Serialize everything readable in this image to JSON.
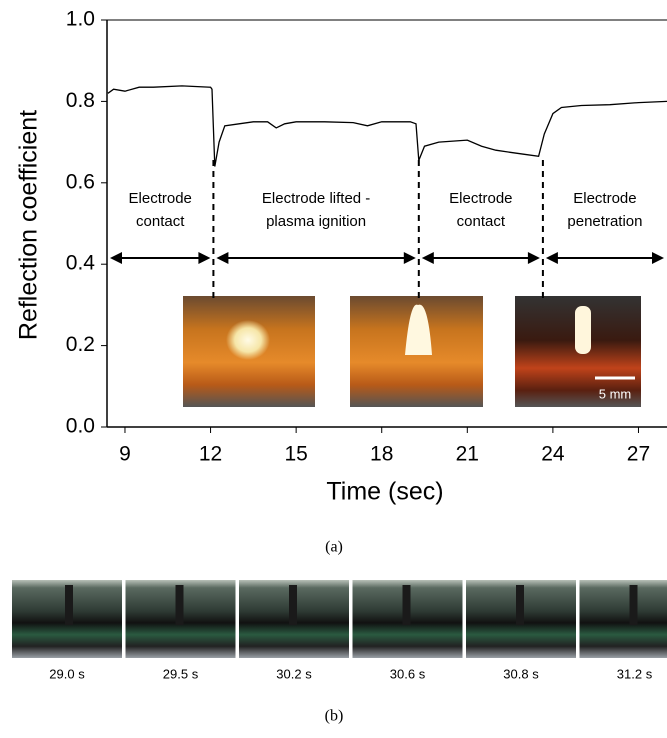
{
  "chart_data": {
    "type": "line",
    "xlabel": "Time (sec)",
    "ylabel": "Reflection coefficient",
    "x": [
      8.4,
      8.6,
      9,
      9.5,
      10,
      11,
      12,
      12.05,
      12.15,
      12.3,
      12.5,
      13,
      13.5,
      14,
      14.3,
      14.6,
      15,
      16,
      17,
      17.5,
      18,
      19,
      19.2,
      19.3,
      19.5,
      20,
      21,
      21.5,
      22,
      22.5,
      23,
      23.5,
      23.7,
      24,
      24.3,
      25,
      26,
      27,
      28
    ],
    "series": [
      {
        "color": "#000000",
        "values": [
          0.82,
          0.83,
          0.825,
          0.835,
          0.835,
          0.838,
          0.835,
          0.83,
          0.64,
          0.7,
          0.74,
          0.745,
          0.75,
          0.75,
          0.735,
          0.745,
          0.75,
          0.75,
          0.748,
          0.74,
          0.75,
          0.75,
          0.745,
          0.655,
          0.69,
          0.7,
          0.705,
          0.69,
          0.68,
          0.675,
          0.67,
          0.665,
          0.72,
          0.77,
          0.785,
          0.79,
          0.792,
          0.797,
          0.8
        ]
      }
    ],
    "xlim": [
      8.37,
      28.0
    ],
    "ylim": [
      0,
      1.0
    ],
    "xticks": [
      9,
      12,
      15,
      18,
      21,
      24,
      27
    ],
    "yticks": [
      {
        "value": 0,
        "label": "0.0"
      },
      0.2,
      0.4,
      0.6,
      0.8,
      {
        "value": 1.0,
        "label": "1.0"
      }
    ],
    "phase_boundaries": [
      12.1,
      19.3,
      23.65
    ],
    "phases": [
      [
        "Electrode",
        "contact"
      ],
      [
        "Electrode lifted -",
        "plasma ignition"
      ],
      [
        "Electrode",
        "contact"
      ],
      [
        "Electrode",
        "penetration"
      ]
    ],
    "scale_bar": "5 mm",
    "caption": "(a)"
  },
  "frames": {
    "labels": [
      "29.0 s",
      "29.5 s",
      "30.2 s",
      "30.6 s",
      "30.8 s",
      "31.2 s"
    ],
    "caption": "(b)"
  }
}
